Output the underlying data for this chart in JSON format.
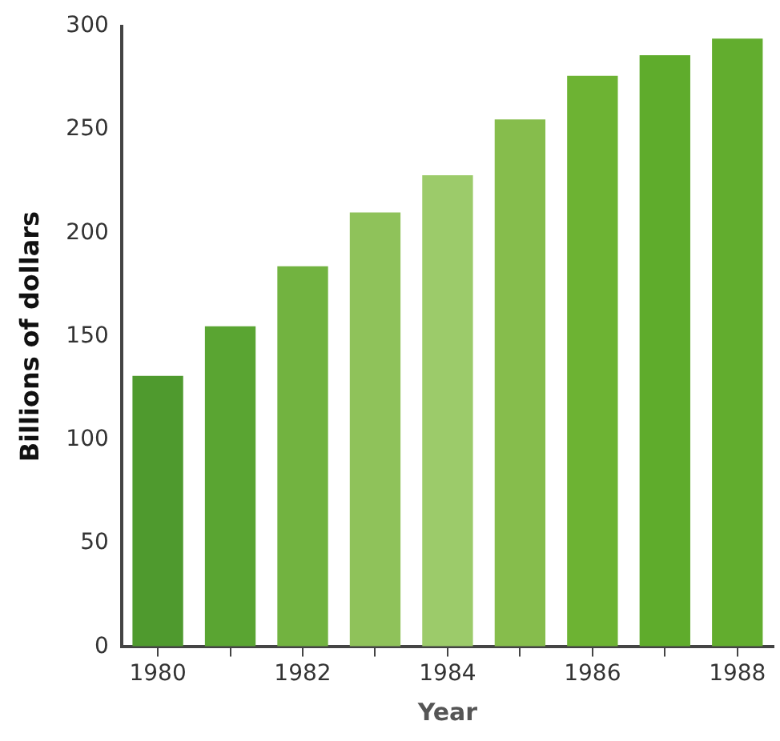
{
  "chart_data": {
    "type": "bar",
    "xlabel": "Year",
    "ylabel": "Billions of dollars",
    "categories": [
      "1980",
      null,
      "1982",
      null,
      "1984",
      null,
      "1986",
      null,
      "1988"
    ],
    "values": [
      131,
      155,
      184,
      210,
      228,
      255,
      276,
      286,
      294
    ],
    "colors": [
      "#4f9a2e",
      "#5aa532",
      "#72b340",
      "#8fc25a",
      "#9ccb6a",
      "#86bd4c",
      "#6db333",
      "#5fac2c",
      "#62ad2e"
    ],
    "ylim": [
      0,
      300
    ],
    "yticks": [
      0,
      50,
      100,
      150,
      200,
      250,
      300
    ],
    "grid": false,
    "legend": false
  }
}
